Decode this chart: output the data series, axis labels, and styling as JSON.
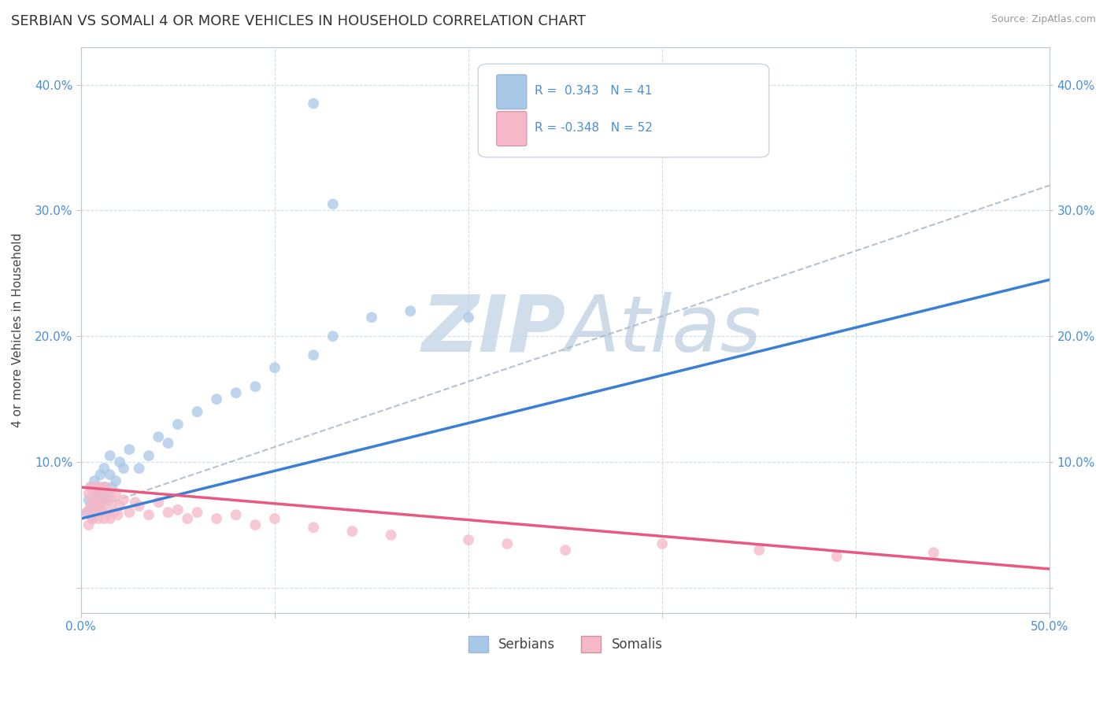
{
  "title": "SERBIAN VS SOMALI 4 OR MORE VEHICLES IN HOUSEHOLD CORRELATION CHART",
  "source": "Source: ZipAtlas.com",
  "ylabel": "4 or more Vehicles in Household",
  "xlim": [
    0.0,
    0.5
  ],
  "ylim": [
    -0.02,
    0.43
  ],
  "xticks": [
    0.0,
    0.1,
    0.2,
    0.3,
    0.4,
    0.5
  ],
  "yticks": [
    0.0,
    0.1,
    0.2,
    0.3,
    0.4
  ],
  "ytick_labels": [
    "",
    "10.0%",
    "20.0%",
    "30.0%",
    "40.0%"
  ],
  "xtick_labels": [
    "0.0%",
    "",
    "",
    "",
    "",
    "50.0%"
  ],
  "right_ytick_labels": [
    "",
    "10.0%",
    "20.0%",
    "30.0%",
    "40.0%"
  ],
  "serbian_R": 0.343,
  "serbian_N": 41,
  "somali_R": -0.348,
  "somali_N": 52,
  "serbian_color": "#a8c8e8",
  "somali_color": "#f5b8c8",
  "serbian_line_color": "#3a7fd5",
  "somali_line_color": "#e85880",
  "background_color": "#ffffff",
  "grid_color": "#c8dce8",
  "watermark_color": "#d0dde8",
  "title_fontsize": 13,
  "label_fontsize": 11,
  "tick_fontsize": 11,
  "legend_fontsize": 12,
  "serbian_x": [
    0.003,
    0.004,
    0.005,
    0.005,
    0.006,
    0.007,
    0.007,
    0.008,
    0.008,
    0.009,
    0.01,
    0.01,
    0.011,
    0.012,
    0.012,
    0.013,
    0.014,
    0.015,
    0.015,
    0.016,
    0.018,
    0.02,
    0.022,
    0.025,
    0.03,
    0.035,
    0.04,
    0.045,
    0.05,
    0.06,
    0.07,
    0.08,
    0.09,
    0.1,
    0.12,
    0.13,
    0.15,
    0.17,
    0.2,
    0.13,
    0.12
  ],
  "serbian_y": [
    0.06,
    0.07,
    0.065,
    0.08,
    0.055,
    0.07,
    0.085,
    0.06,
    0.075,
    0.065,
    0.075,
    0.09,
    0.07,
    0.08,
    0.095,
    0.075,
    0.07,
    0.09,
    0.105,
    0.08,
    0.085,
    0.1,
    0.095,
    0.11,
    0.095,
    0.105,
    0.12,
    0.115,
    0.13,
    0.14,
    0.15,
    0.155,
    0.16,
    0.175,
    0.185,
    0.2,
    0.215,
    0.22,
    0.215,
    0.305,
    0.385
  ],
  "somali_x": [
    0.003,
    0.004,
    0.004,
    0.005,
    0.005,
    0.006,
    0.006,
    0.007,
    0.007,
    0.008,
    0.008,
    0.009,
    0.009,
    0.01,
    0.01,
    0.011,
    0.012,
    0.012,
    0.013,
    0.013,
    0.014,
    0.015,
    0.015,
    0.016,
    0.017,
    0.018,
    0.019,
    0.02,
    0.022,
    0.025,
    0.028,
    0.03,
    0.035,
    0.04,
    0.045,
    0.05,
    0.055,
    0.06,
    0.07,
    0.08,
    0.09,
    0.1,
    0.12,
    0.14,
    0.16,
    0.2,
    0.22,
    0.25,
    0.3,
    0.35,
    0.39,
    0.44
  ],
  "somali_y": [
    0.06,
    0.075,
    0.05,
    0.065,
    0.08,
    0.055,
    0.07,
    0.06,
    0.075,
    0.065,
    0.08,
    0.055,
    0.07,
    0.065,
    0.08,
    0.06,
    0.075,
    0.055,
    0.068,
    0.08,
    0.06,
    0.072,
    0.055,
    0.068,
    0.06,
    0.075,
    0.058,
    0.065,
    0.07,
    0.06,
    0.068,
    0.065,
    0.058,
    0.068,
    0.06,
    0.062,
    0.055,
    0.06,
    0.055,
    0.058,
    0.05,
    0.055,
    0.048,
    0.045,
    0.042,
    0.038,
    0.035,
    0.03,
    0.035,
    0.03,
    0.025,
    0.028
  ],
  "serbian_line_x0": 0.0,
  "serbian_line_y0": 0.055,
  "serbian_line_x1": 0.5,
  "serbian_line_y1": 0.245,
  "somali_line_x0": 0.0,
  "somali_line_y0": 0.08,
  "somali_line_x1": 0.5,
  "somali_line_y1": 0.015,
  "dash_line_x0": 0.0,
  "dash_line_y0": 0.06,
  "dash_line_x1": 0.5,
  "dash_line_y1": 0.32
}
